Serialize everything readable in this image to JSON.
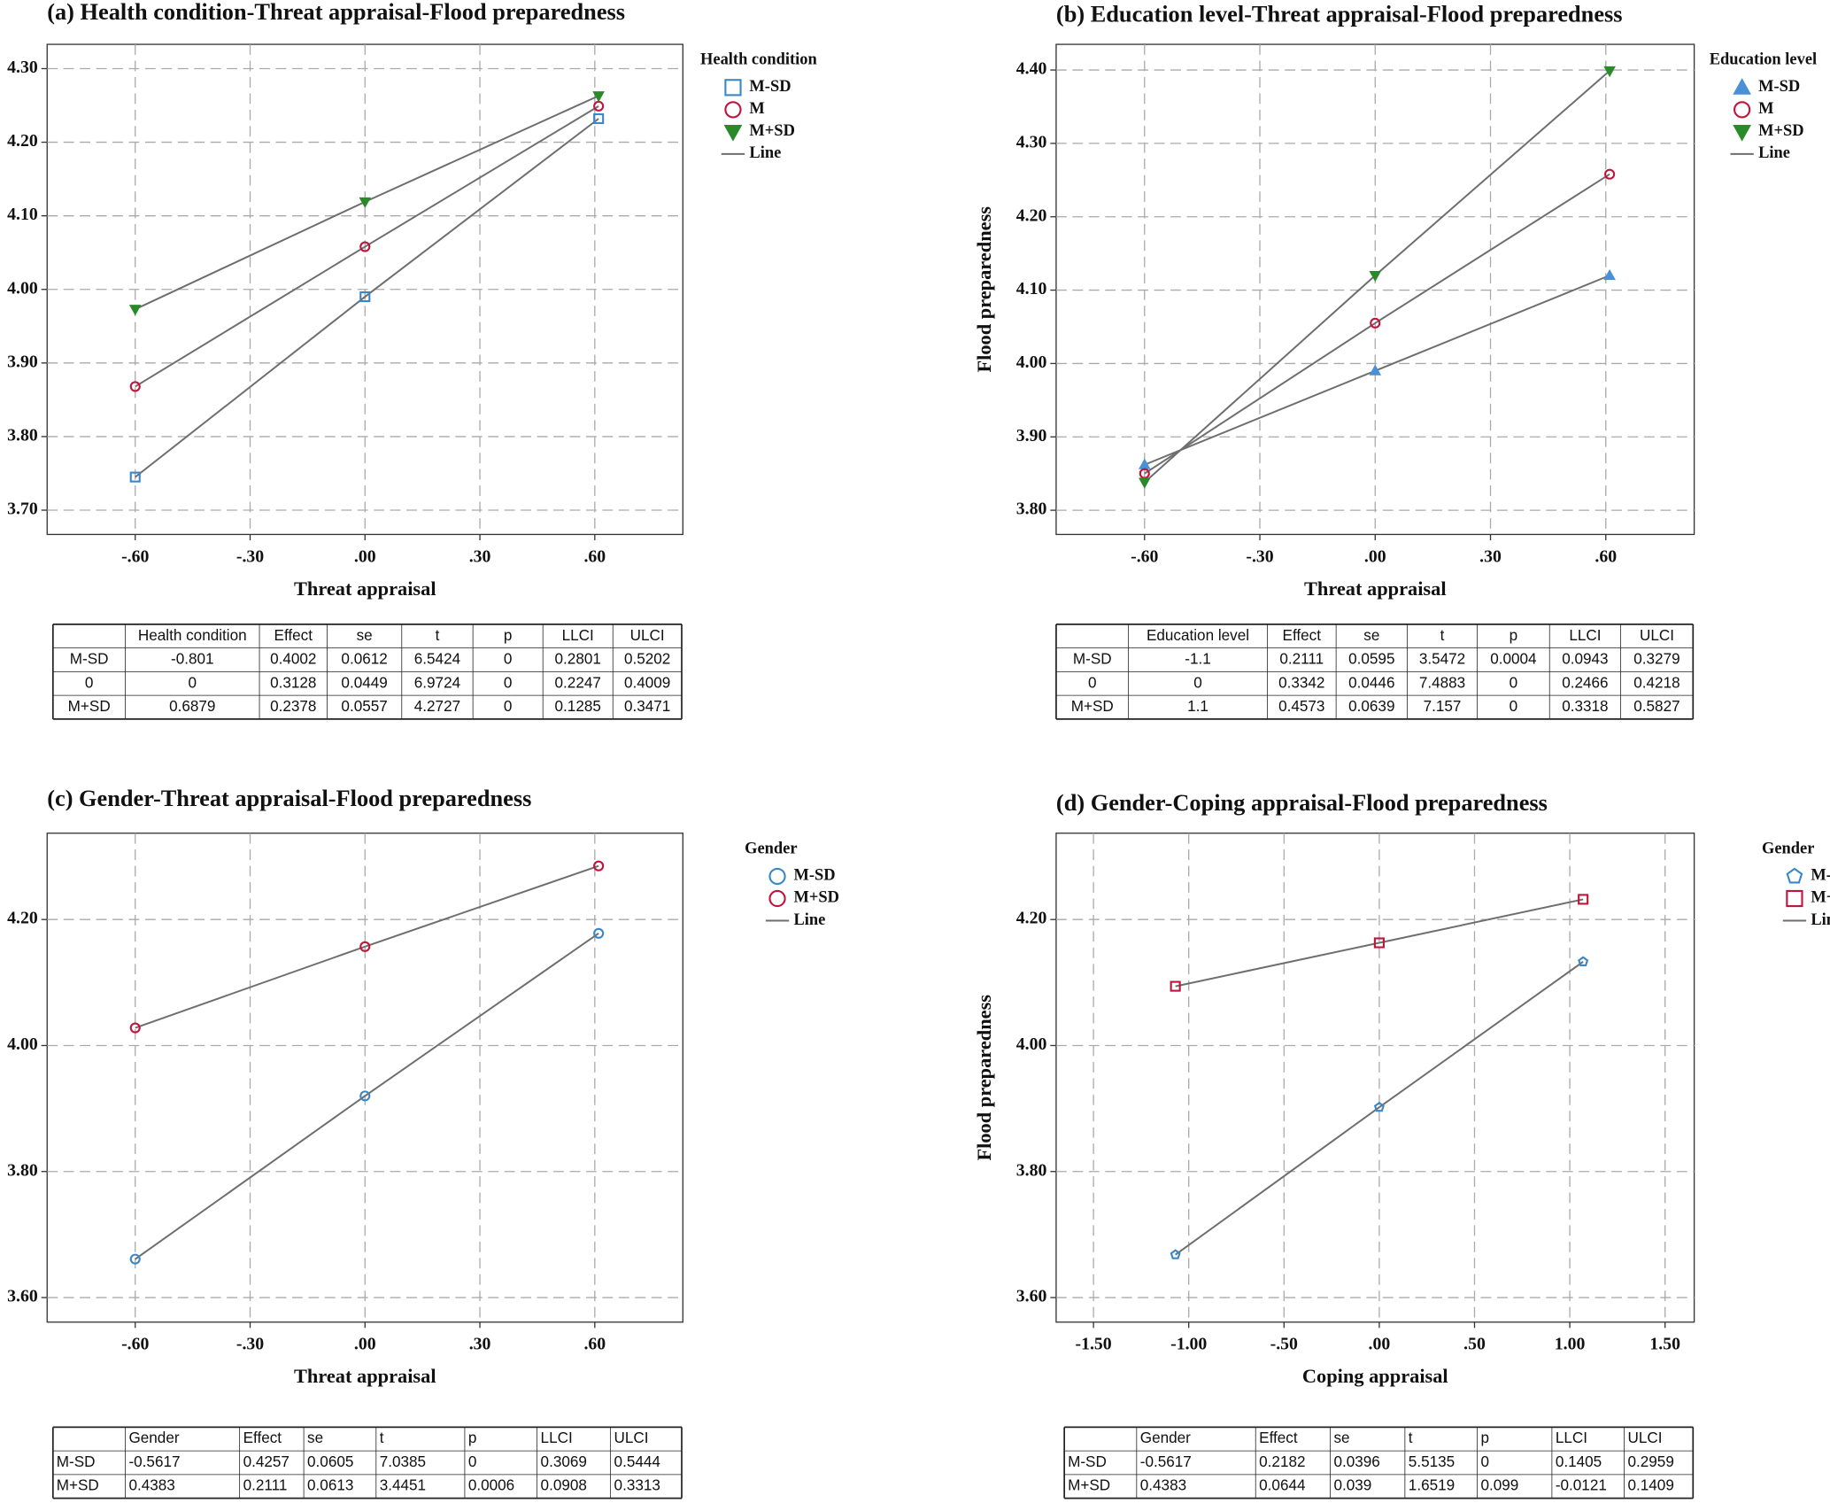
{
  "chart_data": [
    {
      "type": "line",
      "title": "(a) Health condition-Threat appraisal-Flood preparedness",
      "x_label": "Threat appraisal",
      "xlim": [
        -0.83,
        0.83
      ],
      "ylim": [
        3.667,
        4.333
      ],
      "xticks": [
        {
          "value": -0.6,
          "label": "-.60"
        },
        {
          "value": -0.3,
          "label": "-.30"
        },
        {
          "value": 0,
          "label": ".00"
        },
        {
          "value": 0.3,
          "label": ".30"
        },
        {
          "value": 0.6,
          "label": ".60"
        }
      ],
      "yticks": [
        {
          "value": 3.7,
          "label": "3.70"
        },
        {
          "value": 3.8,
          "label": "3.80"
        },
        {
          "value": 3.9,
          "label": "3.90"
        },
        {
          "value": 4.0,
          "label": "4.00"
        },
        {
          "value": 4.1,
          "label": "4.10"
        },
        {
          "value": 4.2,
          "label": "4.20"
        },
        {
          "value": 4.3,
          "label": "4.30"
        }
      ],
      "grid": true,
      "line_color": "#6e6e6e",
      "legend_title": "Health condition",
      "legend_line_label": "Line",
      "x": [
        -0.6,
        0,
        0.61
      ],
      "series": [
        {
          "name": "M-SD",
          "color": "#3a87c8",
          "marker": "square",
          "filled": false,
          "values": [
            3.745,
            3.99,
            4.232
          ]
        },
        {
          "name": "M",
          "color": "#c0143c",
          "marker": "circle",
          "filled": false,
          "values": [
            3.868,
            4.058,
            4.249
          ]
        },
        {
          "name": "M+SD",
          "color": "#2a8a2a",
          "marker": "triangle-down",
          "filled": true,
          "values": [
            3.973,
            4.119,
            4.263
          ]
        }
      ],
      "table": {
        "header": [
          "Health condition",
          "Effect",
          "se",
          "t",
          "p",
          "LLCI",
          "ULCI"
        ],
        "rows": [
          [
            "M-SD",
            -0.801,
            0.4002,
            0.0612,
            6.5424,
            0,
            0.2801,
            0.5202
          ],
          [
            0,
            0,
            0.3128,
            0.0449,
            6.9724,
            0,
            0.2247,
            0.4009
          ],
          [
            "M+SD",
            0.6879,
            0.2378,
            0.0557,
            4.2727,
            0,
            0.1285,
            0.3471
          ]
        ]
      }
    },
    {
      "type": "line",
      "title": "(b) Education level-Threat appraisal-Flood preparedness",
      "x_label": "Threat appraisal",
      "y_label": "Flood preparedness",
      "xlim": [
        -0.83,
        0.83
      ],
      "ylim": [
        3.767,
        4.435
      ],
      "xticks": [
        {
          "value": -0.6,
          "label": "-.60"
        },
        {
          "value": -0.3,
          "label": "-.30"
        },
        {
          "value": 0,
          "label": ".00"
        },
        {
          "value": 0.3,
          "label": ".30"
        },
        {
          "value": 0.6,
          "label": ".60"
        }
      ],
      "yticks": [
        {
          "value": 3.8,
          "label": "3.80"
        },
        {
          "value": 3.9,
          "label": "3.90"
        },
        {
          "value": 4.0,
          "label": "4.00"
        },
        {
          "value": 4.1,
          "label": "4.10"
        },
        {
          "value": 4.2,
          "label": "4.20"
        },
        {
          "value": 4.3,
          "label": "4.30"
        },
        {
          "value": 4.4,
          "label": "4.40"
        }
      ],
      "grid": true,
      "line_color": "#6e6e6e",
      "legend_title": "Education level",
      "legend_line_label": "Line",
      "x": [
        -0.6,
        0,
        0.61
      ],
      "series": [
        {
          "name": "M-SD",
          "color": "#4a90d9",
          "marker": "triangle-up",
          "filled": true,
          "values": [
            3.862,
            3.99,
            4.12
          ]
        },
        {
          "name": "M",
          "color": "#c0143c",
          "marker": "circle",
          "filled": false,
          "values": [
            3.85,
            4.055,
            4.258
          ]
        },
        {
          "name": "M+SD",
          "color": "#2a8a2a",
          "marker": "triangle-down",
          "filled": true,
          "values": [
            3.838,
            4.12,
            4.399
          ]
        }
      ],
      "table": {
        "header": [
          "Education level",
          "Effect",
          "se",
          "t",
          "p",
          "LLCI",
          "ULCI"
        ],
        "rows": [
          [
            "M-SD",
            -1.1,
            0.2111,
            0.0595,
            3.5472,
            0.0004,
            0.0943,
            0.3279
          ],
          [
            0,
            0,
            0.3342,
            0.0446,
            7.4883,
            0,
            0.2466,
            0.4218
          ],
          [
            "M+SD",
            1.1,
            0.4573,
            0.0639,
            7.157,
            0,
            0.3318,
            0.5827
          ]
        ]
      }
    },
    {
      "type": "line",
      "title": "(c) Gender-Threat appraisal-Flood preparedness",
      "x_label": "Threat appraisal",
      "xlim": [
        -0.83,
        0.83
      ],
      "ylim": [
        3.561,
        4.337
      ],
      "xticks": [
        {
          "value": -0.6,
          "label": "-.60"
        },
        {
          "value": -0.3,
          "label": "-.30"
        },
        {
          "value": 0,
          "label": ".00"
        },
        {
          "value": 0.3,
          "label": ".30"
        },
        {
          "value": 0.6,
          "label": ".60"
        }
      ],
      "yticks": [
        {
          "value": 3.6,
          "label": "3.60"
        },
        {
          "value": 3.8,
          "label": "3.80"
        },
        {
          "value": 4.0,
          "label": "4.00"
        },
        {
          "value": 4.2,
          "label": "4.20"
        }
      ],
      "grid": true,
      "line_color": "#6e6e6e",
      "legend_title": "Gender",
      "legend_line_label": "Line",
      "x": [
        -0.6,
        0,
        0.61
      ],
      "series": [
        {
          "name": "M-SD",
          "color": "#3a87c8",
          "marker": "circle",
          "filled": false,
          "values": [
            3.661,
            3.92,
            4.178
          ]
        },
        {
          "name": "M+SD",
          "color": "#c0143c",
          "marker": "circle",
          "filled": false,
          "values": [
            4.028,
            4.157,
            4.285
          ]
        }
      ],
      "table": {
        "header": [
          "Gender",
          "Effect",
          "se",
          "t",
          "p",
          "LLCI",
          "ULCI"
        ],
        "rows": [
          [
            "M-SD",
            -0.5617,
            0.4257,
            0.0605,
            7.0385,
            0,
            0.3069,
            0.5444
          ],
          [
            "M+SD",
            0.4383,
            0.2111,
            0.0613,
            3.4451,
            0.0006,
            0.0908,
            0.3313
          ]
        ]
      }
    },
    {
      "type": "line",
      "title": "(d) Gender-Coping appraisal-Flood preparedness",
      "x_label": "Coping appraisal",
      "y_label": "Flood preparedness",
      "xlim": [
        -1.696,
        1.653
      ],
      "ylim": [
        3.561,
        4.337
      ],
      "xticks": [
        {
          "value": -1.5,
          "label": "-1.50"
        },
        {
          "value": -1.0,
          "label": "-1.00"
        },
        {
          "value": -0.5,
          "label": "-.50"
        },
        {
          "value": 0,
          "label": ".00"
        },
        {
          "value": 0.5,
          "label": ".50"
        },
        {
          "value": 1.0,
          "label": "1.00"
        },
        {
          "value": 1.5,
          "label": "1.50"
        }
      ],
      "yticks": [
        {
          "value": 3.6,
          "label": "3.60"
        },
        {
          "value": 3.8,
          "label": "3.80"
        },
        {
          "value": 4.0,
          "label": "4.00"
        },
        {
          "value": 4.2,
          "label": "4.20"
        }
      ],
      "grid": true,
      "line_color": "#6e6e6e",
      "legend_title": "Gender",
      "legend_line_label": "Line",
      "x": [
        -1.07,
        0,
        1.07
      ],
      "series": [
        {
          "name": "M-SD",
          "color": "#3a87c8",
          "marker": "pentagon",
          "filled": false,
          "values": [
            3.668,
            3.902,
            4.133
          ]
        },
        {
          "name": "M+SD",
          "color": "#c0143c",
          "marker": "square",
          "filled": false,
          "values": [
            4.094,
            4.163,
            4.232
          ]
        }
      ],
      "table": {
        "header": [
          "Gender",
          "Effect",
          "se",
          "t",
          "p",
          "LLCI",
          "ULCI"
        ],
        "rows": [
          [
            "M-SD",
            -0.5617,
            0.2182,
            0.0396,
            5.5135,
            0,
            0.1405,
            0.2959
          ],
          [
            "M+SD",
            0.4383,
            0.0644,
            0.039,
            1.6519,
            0.099,
            -0.0121,
            0.1409
          ]
        ]
      }
    }
  ]
}
